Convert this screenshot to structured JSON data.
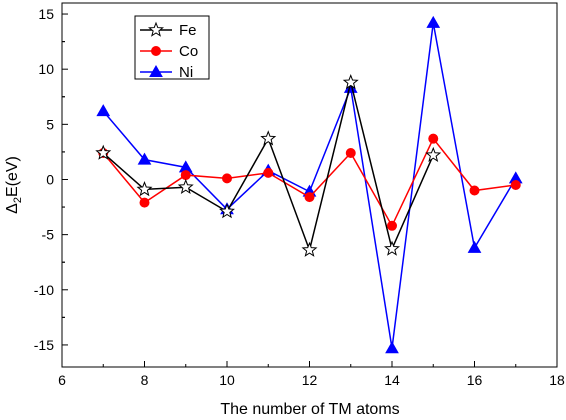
{
  "chart_data": {
    "type": "line",
    "xlabel": "The number of TM atoms",
    "ylabel_main": "Δ",
    "ylabel_sub": "2",
    "ylabel_rest": "E(eV)",
    "xlim": [
      6,
      18
    ],
    "ylim": [
      -17,
      16
    ],
    "xticks": [
      6,
      8,
      10,
      12,
      14,
      16,
      18
    ],
    "yticks": [
      -15,
      -10,
      -5,
      0,
      5,
      10,
      15
    ],
    "xtick_labels": [
      "6",
      "8",
      "10",
      "12",
      "14",
      "16",
      "18"
    ],
    "ytick_labels": [
      "-15",
      "-10",
      "-5",
      "0",
      "5",
      "10",
      "15"
    ],
    "grid": false,
    "legend_position": "top-left",
    "series": [
      {
        "name": "Fe",
        "color": "#000000",
        "marker": "star-open",
        "x": [
          7,
          8,
          9,
          10,
          11,
          12,
          13,
          14,
          15
        ],
        "y": [
          2.4,
          -0.9,
          -0.7,
          -2.9,
          3.7,
          -6.4,
          8.8,
          -6.3,
          2.2
        ]
      },
      {
        "name": "Co",
        "color": "#ff0000",
        "marker": "circle",
        "x": [
          7,
          8,
          9,
          10,
          11,
          12,
          13,
          14,
          15,
          16,
          17
        ],
        "y": [
          2.4,
          -2.1,
          0.4,
          0.1,
          0.6,
          -1.6,
          2.4,
          -4.2,
          3.7,
          -1.0,
          -0.5
        ]
      },
      {
        "name": "Ni",
        "color": "#0000ff",
        "marker": "triangle",
        "x": [
          7,
          8,
          9,
          10,
          11,
          12,
          13,
          14,
          15,
          16,
          17
        ],
        "y": [
          6.2,
          1.8,
          1.1,
          -2.7,
          0.8,
          -1.1,
          8.3,
          -15.3,
          14.2,
          -6.2,
          0.1
        ]
      }
    ]
  }
}
